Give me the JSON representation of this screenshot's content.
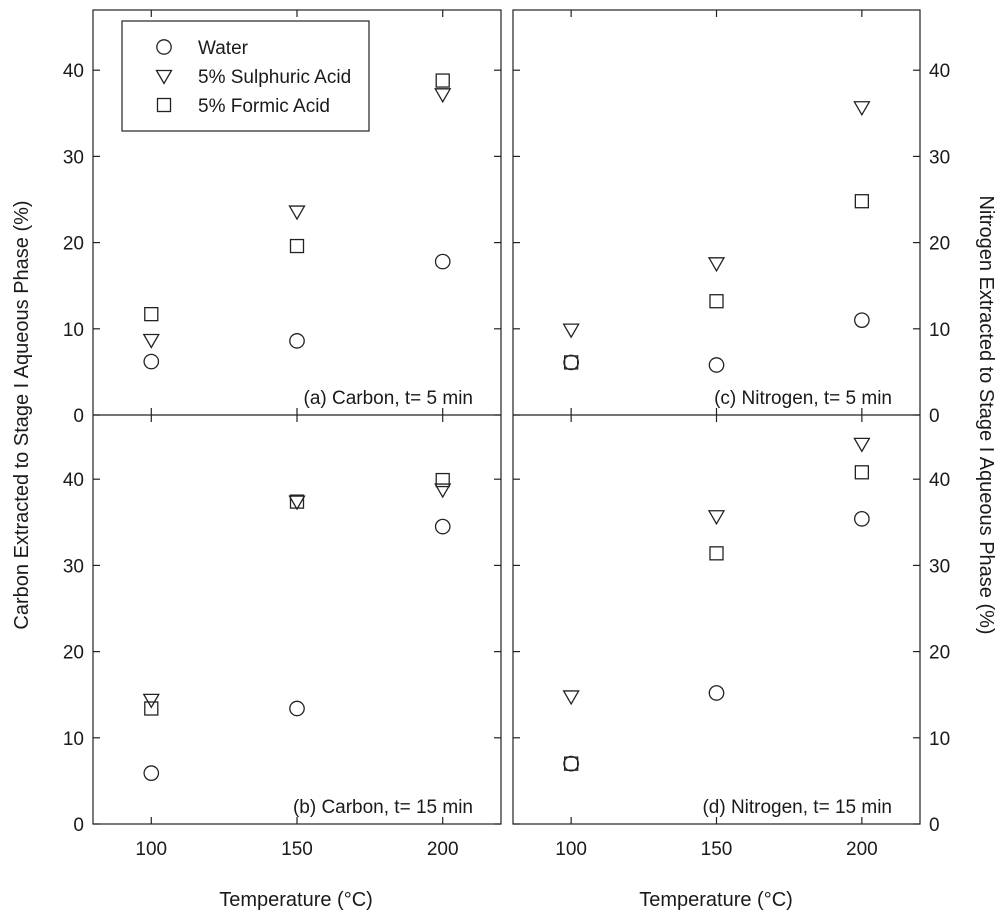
{
  "chart_data": {
    "type": "scatter",
    "layout": "2x2 panels sharing x axis; left panels carbon (left y axis), right panels nitrogen (right y axis)",
    "xlabel": "Temperature (°C)",
    "ylabel_left": "Carbon Extracted to Stage I Aqueous Phase (%)",
    "ylabel_right": "Nitrogen Extracted to Stage I Aqueous Phase (%)",
    "xlim": [
      80,
      220
    ],
    "xticks": [
      100,
      150,
      200
    ],
    "ylim": [
      0,
      46
    ],
    "yticks": [
      0,
      10,
      20,
      30,
      40
    ],
    "grid": false,
    "legend": {
      "location": "top-left of panel (a)",
      "entries": [
        {
          "name": "Water",
          "marker": "circle"
        },
        {
          "name": "5% Sulphuric Acid",
          "marker": "triangle-down"
        },
        {
          "name": "5% Formic Acid",
          "marker": "square"
        }
      ]
    },
    "panels": [
      {
        "id": "a",
        "title": "(a) Carbon, t= 5 min",
        "series": [
          {
            "name": "Water",
            "x": [
              100,
              150,
              200
            ],
            "y": [
              6.2,
              8.6,
              17.8
            ]
          },
          {
            "name": "5% Sulphuric Acid",
            "x": [
              100,
              150,
              200
            ],
            "y": [
              8.7,
              23.6,
              37.2
            ]
          },
          {
            "name": "5% Formic Acid",
            "x": [
              100,
              150,
              200
            ],
            "y": [
              11.7,
              19.6,
              38.8
            ]
          }
        ]
      },
      {
        "id": "c",
        "title": "(c) Nitrogen, t= 5 min",
        "series": [
          {
            "name": "Water",
            "x": [
              100,
              150,
              200
            ],
            "y": [
              6.1,
              5.8,
              11.0
            ]
          },
          {
            "name": "5% Sulphuric Acid",
            "x": [
              100,
              150,
              200
            ],
            "y": [
              9.9,
              17.6,
              35.7
            ]
          },
          {
            "name": "5% Formic Acid",
            "x": [
              100,
              150,
              200
            ],
            "y": [
              6.1,
              13.2,
              24.8
            ]
          }
        ]
      },
      {
        "id": "b",
        "title": "(b) Carbon, t= 15 min",
        "series": [
          {
            "name": "Water",
            "x": [
              100,
              150,
              200
            ],
            "y": [
              5.9,
              13.4,
              34.5
            ]
          },
          {
            "name": "5% Sulphuric Acid",
            "x": [
              100,
              150,
              200
            ],
            "y": [
              14.4,
              37.4,
              38.8
            ]
          },
          {
            "name": "5% Formic Acid",
            "x": [
              100,
              150,
              200
            ],
            "y": [
              13.4,
              37.4,
              39.9
            ]
          }
        ]
      },
      {
        "id": "d",
        "title": "(d) Nitrogen, t= 15 min",
        "series": [
          {
            "name": "Water",
            "x": [
              100,
              150,
              200
            ],
            "y": [
              7.0,
              15.2,
              35.4
            ]
          },
          {
            "name": "5% Sulphuric Acid",
            "x": [
              100,
              150,
              200
            ],
            "y": [
              14.8,
              35.7,
              44.1
            ]
          },
          {
            "name": "5% Formic Acid",
            "x": [
              100,
              150,
              200
            ],
            "y": [
              7.0,
              31.4,
              40.8
            ]
          }
        ]
      }
    ]
  }
}
